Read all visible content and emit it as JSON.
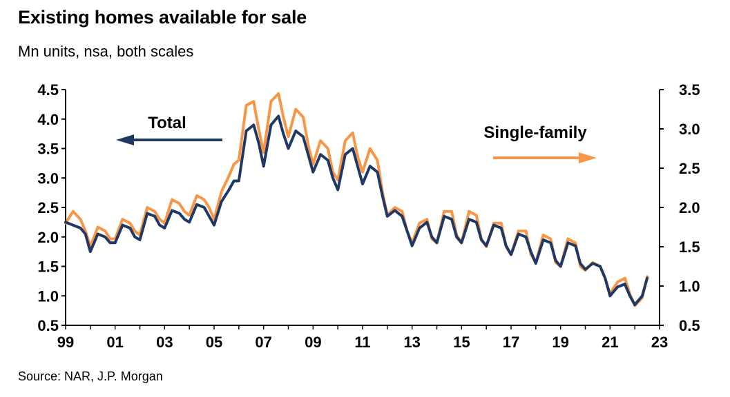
{
  "header": {
    "title": "Existing homes available for sale",
    "subtitle": "Mn units, nsa, both scales"
  },
  "footer": {
    "source": "Source: NAR, J.P. Morgan"
  },
  "colors": {
    "total": "#1F3864",
    "single_family": "#F79646",
    "axis": "#000000"
  },
  "chart_data": {
    "type": "line",
    "title": "Existing homes available for sale",
    "subtitle": "Mn units, nsa, both scales",
    "x_range": [
      1999,
      2023
    ],
    "x_tick_values": [
      1999,
      2001,
      2003,
      2005,
      2007,
      2009,
      2011,
      2013,
      2015,
      2017,
      2019,
      2021,
      2023
    ],
    "x_tick_labels": [
      "99",
      "01",
      "03",
      "05",
      "07",
      "09",
      "11",
      "13",
      "15",
      "17",
      "19",
      "21",
      "23"
    ],
    "y_left": {
      "range": [
        0.5,
        4.5
      ],
      "ticks": [
        "0.5",
        "1.0",
        "1.5",
        "2.0",
        "2.5",
        "3.0",
        "3.5",
        "4.0",
        "4.5"
      ]
    },
    "y_right": {
      "range": [
        0.5,
        3.5
      ],
      "ticks": [
        "0.5",
        "1.0",
        "1.5",
        "2.0",
        "2.5",
        "3.0",
        "3.5"
      ]
    },
    "grid": false,
    "annotations": [
      {
        "text": "Total",
        "arrow": "left",
        "axis": "left"
      },
      {
        "text": "Single-family",
        "arrow": "right",
        "axis": "right"
      }
    ],
    "series": [
      {
        "name": "Total",
        "axis": "left",
        "x": [
          1999.0,
          1999.3,
          1999.6,
          1999.8,
          2000.0,
          2000.3,
          2000.6,
          2000.8,
          2001.0,
          2001.3,
          2001.6,
          2001.8,
          2002.0,
          2002.3,
          2002.6,
          2002.8,
          2003.0,
          2003.3,
          2003.6,
          2003.8,
          2004.0,
          2004.3,
          2004.6,
          2004.8,
          2005.0,
          2005.3,
          2005.6,
          2005.8,
          2006.0,
          2006.3,
          2006.6,
          2006.8,
          2007.0,
          2007.3,
          2007.6,
          2007.8,
          2008.0,
          2008.3,
          2008.6,
          2008.8,
          2009.0,
          2009.3,
          2009.6,
          2009.8,
          2010.0,
          2010.3,
          2010.6,
          2010.8,
          2011.0,
          2011.3,
          2011.6,
          2011.8,
          2012.0,
          2012.3,
          2012.6,
          2012.8,
          2013.0,
          2013.3,
          2013.6,
          2013.8,
          2014.0,
          2014.3,
          2014.6,
          2014.8,
          2015.0,
          2015.3,
          2015.6,
          2015.8,
          2016.0,
          2016.3,
          2016.6,
          2016.8,
          2017.0,
          2017.3,
          2017.6,
          2017.8,
          2018.0,
          2018.3,
          2018.6,
          2018.8,
          2019.0,
          2019.3,
          2019.6,
          2019.8,
          2020.0,
          2020.3,
          2020.6,
          2020.8,
          2021.0,
          2021.3,
          2021.6,
          2021.8,
          2022.0,
          2022.3,
          2022.5
        ],
        "values": [
          2.25,
          2.2,
          2.15,
          2.05,
          1.75,
          2.05,
          2.0,
          1.9,
          1.9,
          2.2,
          2.15,
          2.0,
          1.95,
          2.4,
          2.35,
          2.2,
          2.15,
          2.45,
          2.4,
          2.3,
          2.25,
          2.55,
          2.5,
          2.35,
          2.2,
          2.6,
          2.8,
          2.95,
          2.95,
          3.8,
          3.9,
          3.6,
          3.2,
          3.9,
          4.05,
          3.75,
          3.5,
          3.8,
          3.7,
          3.4,
          3.1,
          3.4,
          3.3,
          3.0,
          2.8,
          3.4,
          3.5,
          3.2,
          2.9,
          3.2,
          3.1,
          2.7,
          2.35,
          2.45,
          2.35,
          2.1,
          1.85,
          2.15,
          2.25,
          2.0,
          1.9,
          2.35,
          2.3,
          2.0,
          1.9,
          2.3,
          2.25,
          1.95,
          1.85,
          2.2,
          2.15,
          1.85,
          1.7,
          2.05,
          2.0,
          1.75,
          1.55,
          1.95,
          1.9,
          1.6,
          1.5,
          1.9,
          1.85,
          1.55,
          1.45,
          1.55,
          1.5,
          1.3,
          1.0,
          1.15,
          1.2,
          1.0,
          0.85,
          1.0,
          1.3
        ]
      },
      {
        "name": "Single-family",
        "axis": "right",
        "x": [
          1999.0,
          1999.3,
          1999.6,
          1999.8,
          2000.0,
          2000.3,
          2000.6,
          2000.8,
          2001.0,
          2001.3,
          2001.6,
          2001.8,
          2002.0,
          2002.3,
          2002.6,
          2002.8,
          2003.0,
          2003.3,
          2003.6,
          2003.8,
          2004.0,
          2004.3,
          2004.6,
          2004.8,
          2005.0,
          2005.3,
          2005.6,
          2005.8,
          2006.0,
          2006.3,
          2006.6,
          2006.8,
          2007.0,
          2007.3,
          2007.6,
          2007.8,
          2008.0,
          2008.3,
          2008.6,
          2008.8,
          2009.0,
          2009.3,
          2009.6,
          2009.8,
          2010.0,
          2010.3,
          2010.6,
          2010.8,
          2011.0,
          2011.3,
          2011.6,
          2011.8,
          2012.0,
          2012.3,
          2012.6,
          2012.8,
          2013.0,
          2013.3,
          2013.6,
          2013.8,
          2014.0,
          2014.3,
          2014.6,
          2014.8,
          2015.0,
          2015.3,
          2015.6,
          2015.8,
          2016.0,
          2016.3,
          2016.6,
          2016.8,
          2017.0,
          2017.3,
          2017.6,
          2017.8,
          2018.0,
          2018.3,
          2018.6,
          2018.8,
          2019.0,
          2019.3,
          2019.6,
          2019.8,
          2020.0,
          2020.3,
          2020.6,
          2020.8,
          2021.0,
          2021.3,
          2021.6,
          2021.8,
          2022.0,
          2022.3,
          2022.5
        ],
        "values": [
          1.8,
          1.95,
          1.85,
          1.7,
          1.5,
          1.75,
          1.7,
          1.6,
          1.6,
          1.85,
          1.8,
          1.7,
          1.65,
          2.0,
          1.95,
          1.85,
          1.8,
          2.1,
          2.05,
          1.95,
          1.9,
          2.15,
          2.1,
          2.0,
          1.85,
          2.2,
          2.4,
          2.55,
          2.6,
          3.3,
          3.35,
          3.0,
          2.7,
          3.35,
          3.45,
          3.15,
          2.9,
          3.25,
          3.15,
          2.8,
          2.55,
          2.85,
          2.75,
          2.45,
          2.35,
          2.85,
          2.95,
          2.65,
          2.45,
          2.75,
          2.6,
          2.2,
          1.9,
          2.0,
          1.95,
          1.7,
          1.55,
          1.8,
          1.85,
          1.6,
          1.55,
          1.95,
          1.95,
          1.65,
          1.55,
          1.95,
          1.9,
          1.6,
          1.5,
          1.8,
          1.8,
          1.5,
          1.4,
          1.7,
          1.7,
          1.4,
          1.3,
          1.65,
          1.6,
          1.3,
          1.25,
          1.6,
          1.55,
          1.25,
          1.2,
          1.3,
          1.25,
          1.1,
          0.9,
          1.05,
          1.1,
          0.9,
          0.75,
          0.85,
          1.12
        ]
      }
    ]
  }
}
